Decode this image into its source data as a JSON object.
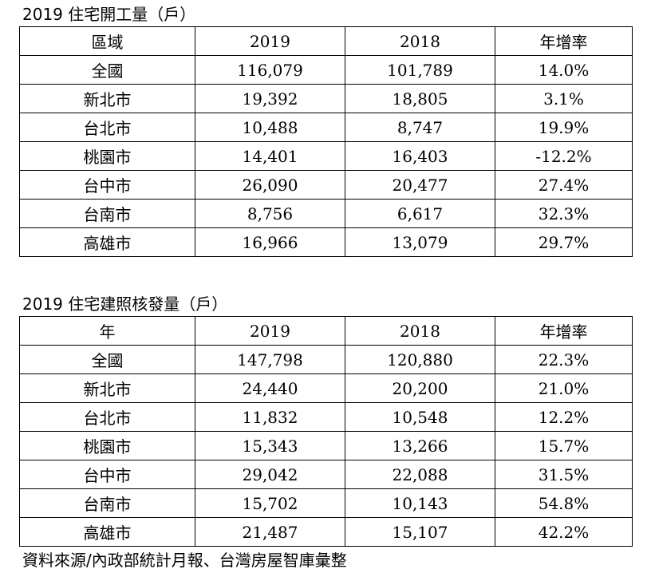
{
  "tables": [
    {
      "title": "2019 住宅開工量（戶）",
      "headers": [
        "區域",
        "2019",
        "2018",
        "年增率"
      ],
      "rows": [
        [
          "全國",
          "116,079",
          "101,789",
          "14.0%"
        ],
        [
          "新北市",
          "19,392",
          "18,805",
          "3.1%"
        ],
        [
          "台北市",
          "10,488",
          "8,747",
          "19.9%"
        ],
        [
          "桃園市",
          "14,401",
          "16,403",
          "-12.2%"
        ],
        [
          "台中市",
          "26,090",
          "20,477",
          "27.4%"
        ],
        [
          "台南市",
          "8,756",
          "6,617",
          "32.3%"
        ],
        [
          "高雄市",
          "16,966",
          "13,079",
          "29.7%"
        ]
      ]
    },
    {
      "title": "2019 住宅建照核發量（戶）",
      "headers": [
        "年",
        "2019",
        "2018",
        "年增率"
      ],
      "rows": [
        [
          "全國",
          "147,798",
          "120,880",
          "22.3%"
        ],
        [
          "新北市",
          "24,440",
          "20,200",
          "21.0%"
        ],
        [
          "台北市",
          "11,832",
          "10,548",
          "12.2%"
        ],
        [
          "桃園市",
          "15,343",
          "13,266",
          "15.7%"
        ],
        [
          "台中市",
          "29,042",
          "22,088",
          "31.5%"
        ],
        [
          "台南市",
          "15,702",
          "10,143",
          "54.8%"
        ],
        [
          "高雄市",
          "21,487",
          "15,107",
          "42.2%"
        ]
      ]
    }
  ],
  "source": "資料來源/內政部統計月報、台灣房屋智庫彙整"
}
